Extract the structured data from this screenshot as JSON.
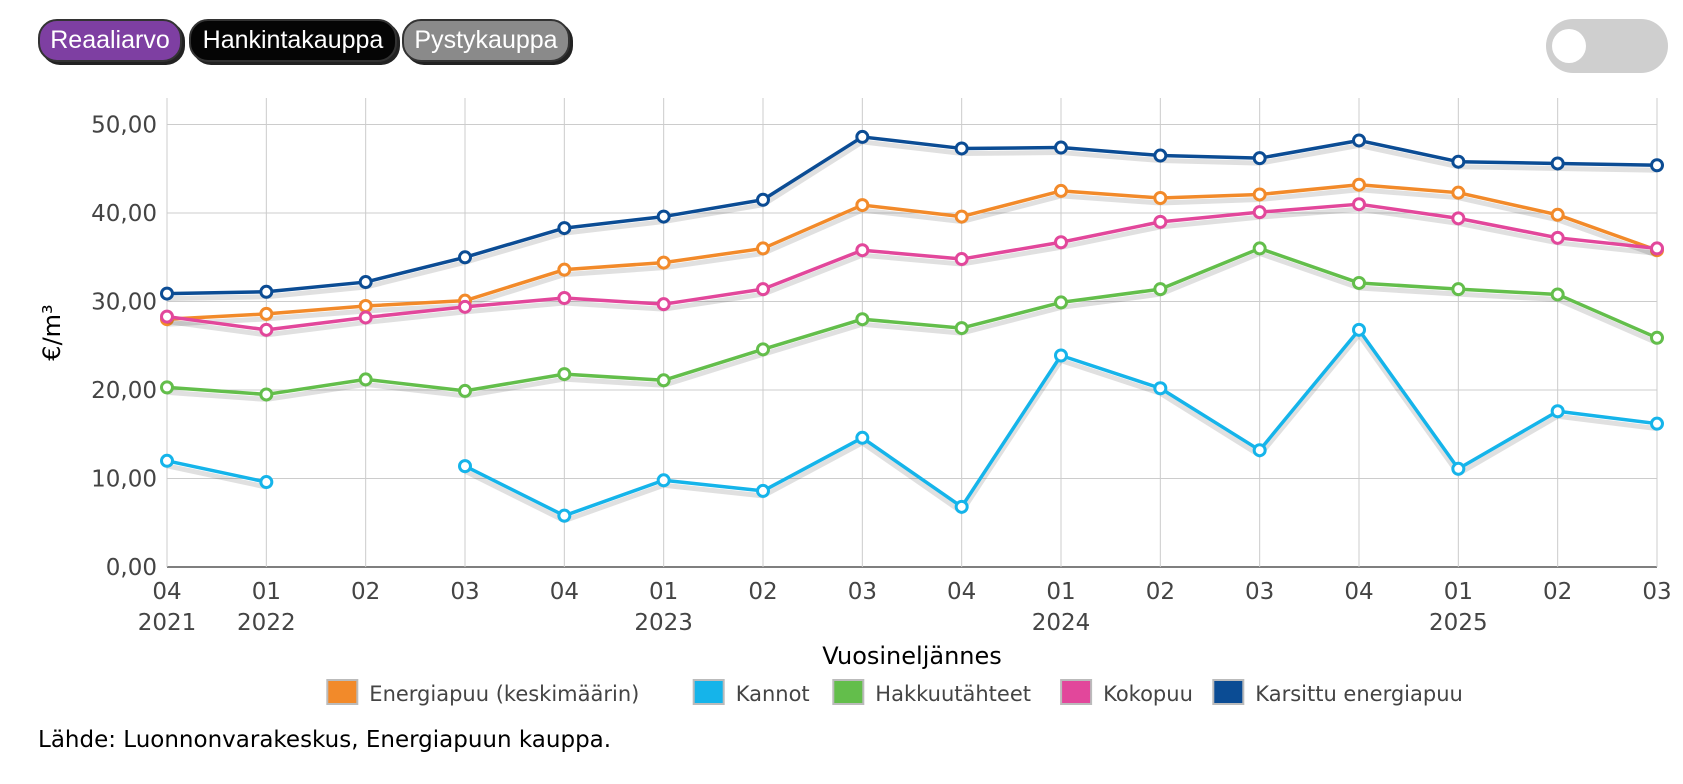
{
  "buttons": {
    "real": "Reaaliarvo",
    "hankinta": "Hankintakauppa",
    "pysty": "Pystykauppa"
  },
  "colors": {
    "real_button": "#7e3fa2",
    "hankinta_button": "#050505",
    "pysty_button": "#8a8a8a",
    "toggle": "#cfcfcf"
  },
  "source": "Lähde: Luonnonvarakeskus, Energiapuun kauppa.",
  "chart_data": {
    "type": "line",
    "title": "",
    "xlabel": "Vuosineljännes",
    "ylabel": "€/m³",
    "ylim": [
      0,
      53
    ],
    "yticks": [
      "0,00",
      "10,00",
      "20,00",
      "30,00",
      "40,00",
      "50,00"
    ],
    "ytick_values": [
      0,
      10,
      20,
      30,
      40,
      50
    ],
    "categories": [
      "04",
      "01",
      "02",
      "03",
      "04",
      "01",
      "02",
      "03",
      "04",
      "01",
      "02",
      "03",
      "04",
      "01",
      "02",
      "03"
    ],
    "year_labels": [
      "2021",
      "2022",
      "",
      "",
      "",
      "2023",
      "",
      "",
      "",
      "2024",
      "",
      "",
      "",
      "2025",
      "",
      ""
    ],
    "grid": true,
    "legend_position": "bottom",
    "series": [
      {
        "name": "Karsittu energiapuu",
        "color": "#0b4c94",
        "values": [
          30.9,
          31.1,
          32.2,
          35.0,
          38.3,
          39.6,
          41.5,
          48.6,
          47.3,
          47.4,
          46.5,
          46.2,
          48.2,
          45.8,
          45.6,
          45.4
        ]
      },
      {
        "name": "Energiapuu (keskimäärin)",
        "color": "#f28a2a",
        "values": [
          28.0,
          28.6,
          29.5,
          30.1,
          33.6,
          34.4,
          36.0,
          40.9,
          39.6,
          42.5,
          41.7,
          42.1,
          43.2,
          42.3,
          39.8,
          35.8
        ]
      },
      {
        "name": "Kokopuu",
        "color": "#e2479b",
        "values": [
          28.3,
          26.8,
          28.2,
          29.4,
          30.4,
          29.7,
          31.4,
          35.8,
          34.8,
          36.7,
          39.0,
          40.1,
          41.0,
          39.4,
          37.2,
          36.0
        ]
      },
      {
        "name": "Hakkuutähteet",
        "color": "#63be4b",
        "values": [
          20.3,
          19.5,
          21.2,
          19.9,
          21.8,
          21.1,
          24.6,
          28.0,
          27.0,
          29.9,
          31.4,
          36.0,
          32.1,
          31.4,
          30.8,
          25.9
        ]
      },
      {
        "name": "Kannot",
        "color": "#15b4ea",
        "values": [
          12.0,
          9.6,
          null,
          11.4,
          5.8,
          9.8,
          8.6,
          14.6,
          6.8,
          23.9,
          20.2,
          13.2,
          26.8,
          11.1,
          17.6,
          16.2
        ]
      }
    ],
    "legend": [
      "Energiapuu (keskimäärin)",
      "Kannot",
      "Hakkuutähteet",
      "Kokopuu",
      "Karsittu energiapuu"
    ]
  }
}
